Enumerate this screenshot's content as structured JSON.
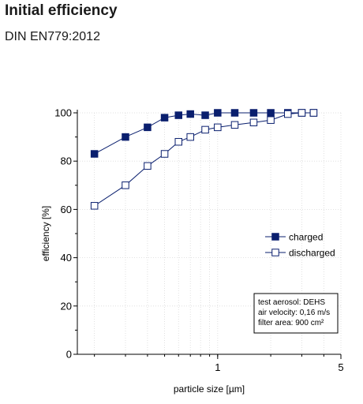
{
  "page": {
    "heading": "Initial efficiency",
    "subheading": "DIN EN779:2012"
  },
  "chart_data": {
    "type": "line",
    "xlabel": "particle size [µm]",
    "ylabel": "efficiency [%]",
    "xscale": "log",
    "xlim": [
      0.16,
      5
    ],
    "ylim": [
      0,
      100
    ],
    "x_ticks": [
      {
        "value": 1,
        "label": "1"
      },
      {
        "value": 5,
        "label": "5"
      }
    ],
    "y_ticks": [
      0,
      20,
      40,
      60,
      80,
      100
    ],
    "grid": true,
    "series": [
      {
        "name": "charged",
        "marker": "filled-square",
        "color": "#0a1f6e",
        "x": [
          0.2,
          0.3,
          0.4,
          0.5,
          0.6,
          0.7,
          0.85,
          1.0,
          1.25,
          1.6,
          2.0,
          2.5,
          3.0,
          3.5
        ],
        "y": [
          83,
          90,
          94,
          98,
          99,
          99.5,
          99,
          100,
          100,
          100,
          100,
          100,
          100,
          100
        ]
      },
      {
        "name": "discharged",
        "marker": "open-square",
        "color": "#0a1f6e",
        "x": [
          0.2,
          0.3,
          0.4,
          0.5,
          0.6,
          0.7,
          0.85,
          1.0,
          1.25,
          1.6,
          2.0,
          2.5,
          3.0,
          3.5
        ],
        "y": [
          61.5,
          70,
          78,
          83,
          88,
          90,
          93,
          94,
          95,
          96,
          97,
          99.5,
          100,
          100
        ]
      }
    ],
    "legend": {
      "placement": "center-right"
    },
    "annotation": {
      "placement": "bottom-right",
      "lines": [
        "test aerosol: DEHS",
        "air velocity: 0,16 m/s",
        "filter area: 900 cm²"
      ]
    }
  }
}
